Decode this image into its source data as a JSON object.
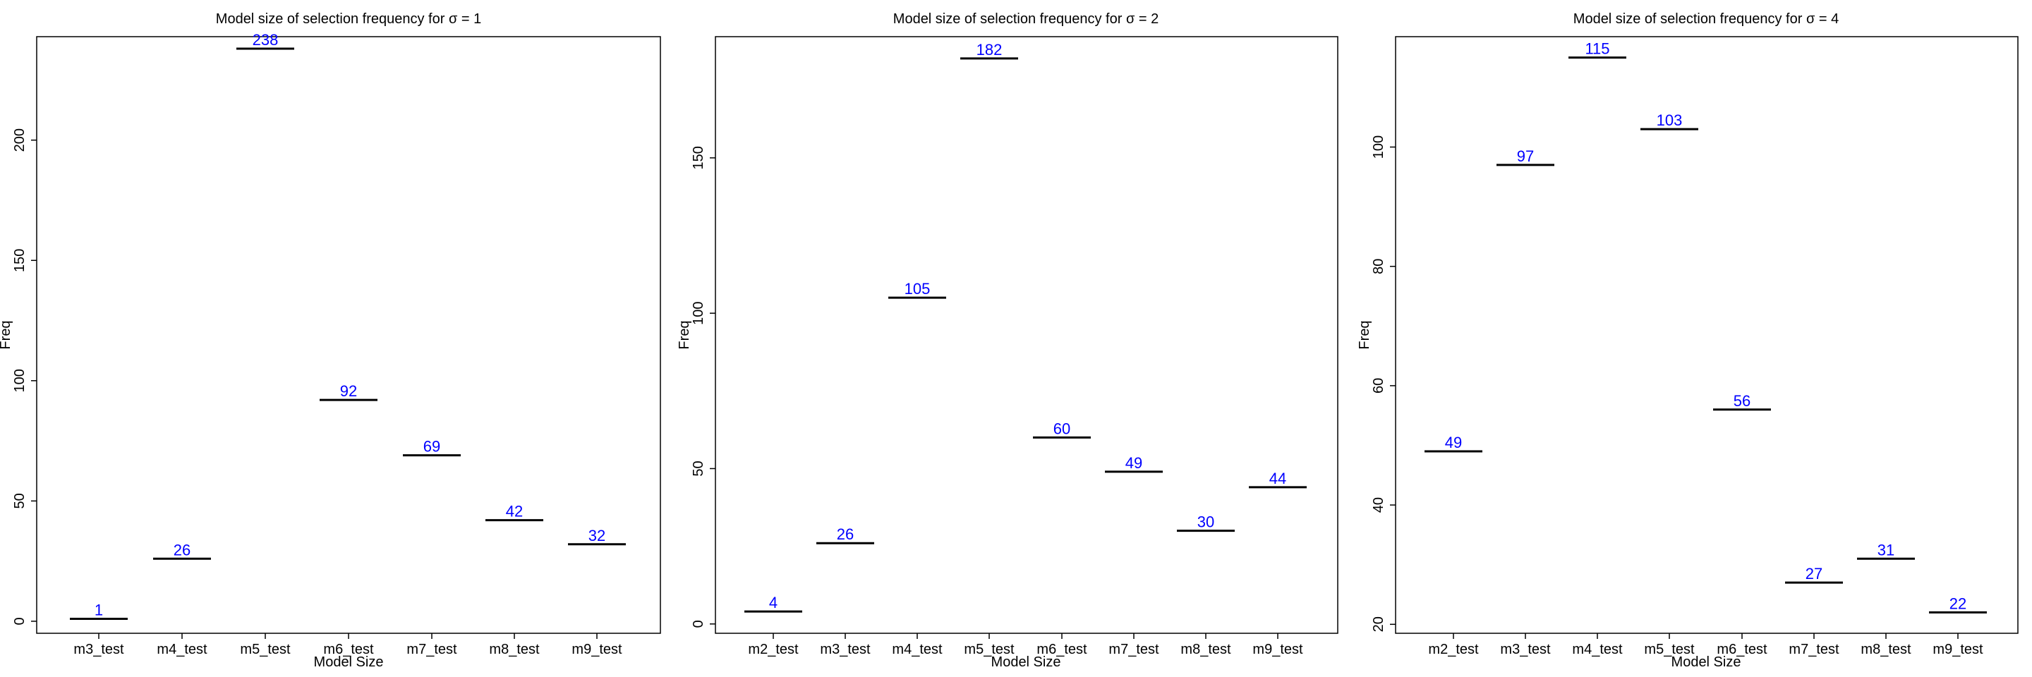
{
  "chart_data": [
    {
      "type": "scatter",
      "marker": "horizontal-bar",
      "title": "Model size of selection frequency for σ = 1",
      "xlabel": "Model Size",
      "ylabel": "Freq",
      "categories": [
        "m3_test",
        "m4_test",
        "m5_test",
        "m6_test",
        "m7_test",
        "m8_test",
        "m9_test"
      ],
      "values": [
        1,
        26,
        238,
        92,
        69,
        42,
        32
      ],
      "ylim": [
        -5,
        243
      ],
      "yticks": [
        0,
        50,
        100,
        150,
        200
      ],
      "grid": false,
      "colors": {
        "marker": "#000000",
        "label": "#0000ff"
      }
    },
    {
      "type": "scatter",
      "marker": "horizontal-bar",
      "title": "Model size of selection frequency for σ = 2",
      "xlabel": "Model Size",
      "ylabel": "Freq",
      "categories": [
        "m2_test",
        "m3_test",
        "m4_test",
        "m5_test",
        "m6_test",
        "m7_test",
        "m8_test",
        "m9_test"
      ],
      "values": [
        4,
        26,
        105,
        182,
        60,
        49,
        30,
        44
      ],
      "ylim": [
        -3,
        189
      ],
      "yticks": [
        0,
        50,
        100,
        150
      ],
      "grid": false,
      "colors": {
        "marker": "#000000",
        "label": "#0000ff"
      }
    },
    {
      "type": "scatter",
      "marker": "horizontal-bar",
      "title": "Model size of selection frequency for σ = 4",
      "xlabel": "Model Size",
      "ylabel": "Freq",
      "categories": [
        "m2_test",
        "m3_test",
        "m4_test",
        "m5_test",
        "m6_test",
        "m7_test",
        "m8_test",
        "m9_test"
      ],
      "values": [
        49,
        97,
        115,
        103,
        56,
        27,
        31,
        22
      ],
      "ylim": [
        18.5,
        118.5
      ],
      "yticks": [
        20,
        40,
        60,
        80,
        100
      ],
      "grid": false,
      "colors": {
        "marker": "#000000",
        "label": "#0000ff"
      }
    }
  ]
}
